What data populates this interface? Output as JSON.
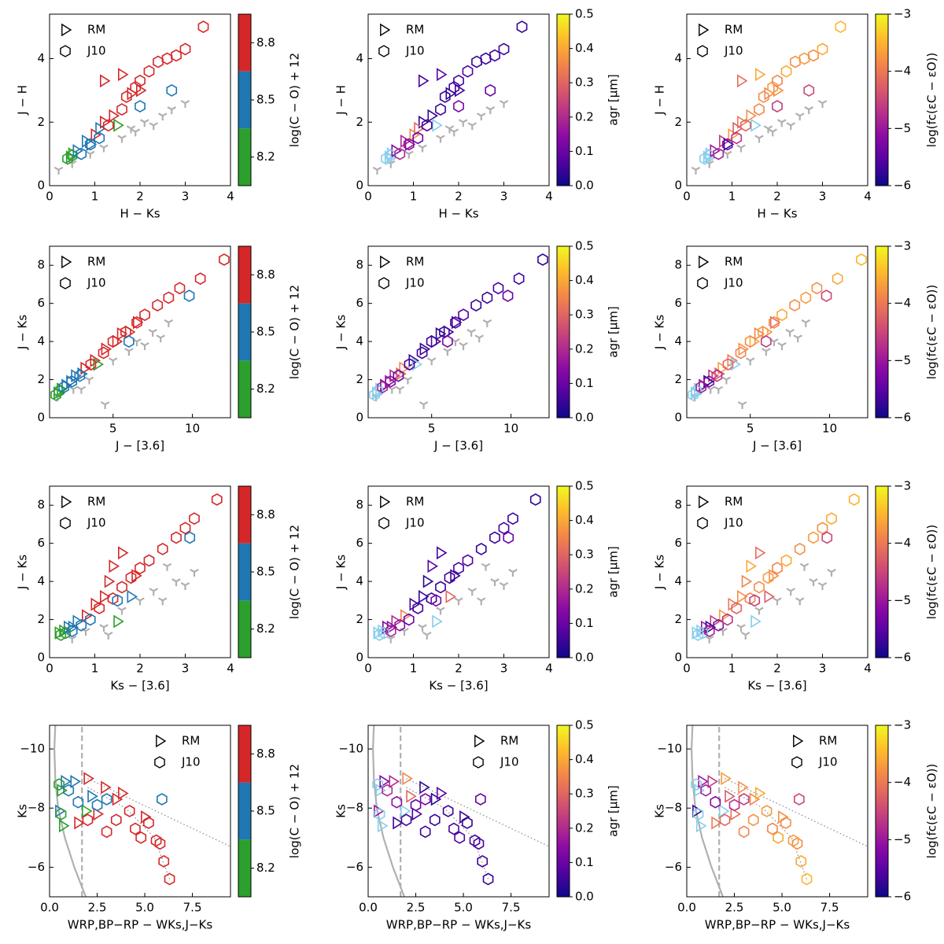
{
  "legend": [
    "RM",
    "J10"
  ],
  "missing_color": "#87ceeb",
  "gray_color": "#b0b0b0",
  "columns": [
    {
      "key": "co",
      "label": "log(C − O) + 12",
      "cmap": "discrete",
      "boundaries": [
        8.05,
        8.35,
        8.65,
        8.95
      ],
      "colors": [
        "#2ca02c",
        "#1f77b4",
        "#d62728"
      ],
      "ticks": [
        8.2,
        8.5,
        8.8
      ]
    },
    {
      "key": "agr",
      "label": "agr [μm]",
      "cmap": "plasma",
      "lim": [
        0,
        0.5
      ],
      "ticks": [
        {
          "value": 0,
          "label": "0.0"
        },
        0.1,
        0.2,
        0.3,
        0.4,
        0.5
      ]
    },
    {
      "key": "logf",
      "label": "log(fc(εC − εO))",
      "cmap": "plasma",
      "lim": [
        -6,
        -3
      ],
      "ticks": [
        {
          "value": -6,
          "label": "−6"
        },
        {
          "value": -5,
          "label": "−5"
        },
        {
          "value": -4,
          "label": "−4"
        },
        {
          "value": -3,
          "label": "−3"
        }
      ]
    }
  ],
  "stars": {
    "rm": {
      "co": [
        8.2,
        8.2,
        8.5,
        8.5,
        8.8,
        8.8,
        8.8,
        8.2,
        8.8,
        8.8,
        8.8,
        8.5,
        8.5,
        8.8
      ],
      "agr": [
        null,
        null,
        0.12,
        0.2,
        0.35,
        0.05,
        0.04,
        null,
        0.03,
        0.06,
        0.08,
        0.15,
        0.3,
        0.05
      ],
      "logf": [
        null,
        null,
        -5.0,
        -4.6,
        -3.7,
        -4.0,
        -3.8,
        null,
        -3.9,
        -4.1,
        -3.6,
        -5.8,
        -4.3,
        -3.8
      ]
    },
    "j10": {
      "co": [
        8.2,
        8.2,
        8.5,
        8.5,
        8.5,
        8.8,
        8.8,
        8.8,
        8.8,
        8.8,
        8.8,
        8.8,
        8.8,
        8.8,
        8.8,
        8.8,
        8.5,
        8.5
      ],
      "agr": [
        null,
        null,
        0.2,
        0.15,
        0.1,
        0.06,
        0.05,
        0.04,
        0.05,
        0.06,
        0.07,
        0.04,
        0.05,
        0.06,
        0.05,
        0.04,
        0.1,
        0.12
      ],
      "logf": [
        null,
        null,
        -4.9,
        -5.2,
        -4.7,
        -4.2,
        -3.9,
        -3.8,
        -3.7,
        -3.9,
        -3.6,
        -3.8,
        -3.7,
        -3.8,
        -3.6,
        -3.5,
        -4.5,
        -4.6
      ]
    }
  },
  "chart_data": [
    {
      "type": "scatter",
      "xlabel": "H − Ks",
      "ylabel": "J − H",
      "legend_loc": "upper left",
      "xlim": [
        0,
        4
      ],
      "ylim": [
        0,
        5.4
      ],
      "xticks": [
        0,
        1,
        2,
        3,
        4
      ],
      "yticks": [
        0,
        2,
        4
      ],
      "rm": {
        "x": [
          0.45,
          0.5,
          0.6,
          0.8,
          1.0,
          1.2,
          1.4,
          1.5,
          1.8,
          1.2,
          1.6,
          0.9,
          1.1,
          2.0
        ],
        "y": [
          0.9,
          1.0,
          1.1,
          1.4,
          1.6,
          2.0,
          2.2,
          1.9,
          2.9,
          3.3,
          3.5,
          1.3,
          1.8,
          3.0
        ]
      },
      "j10": {
        "x": [
          0.4,
          0.5,
          0.7,
          0.9,
          1.1,
          1.3,
          1.6,
          1.7,
          1.9,
          2.0,
          2.2,
          2.4,
          2.6,
          2.8,
          3.0,
          3.4,
          2.7,
          2.0
        ],
        "y": [
          0.85,
          0.95,
          1.0,
          1.3,
          1.5,
          1.9,
          2.4,
          2.8,
          3.1,
          3.3,
          3.6,
          3.9,
          4.0,
          4.1,
          4.3,
          5.0,
          3.0,
          2.5
        ]
      },
      "gray": {
        "x": [
          0.2,
          0.5,
          0.9,
          1.2,
          1.6,
          1.9,
          2.1,
          2.3,
          2.5,
          2.7,
          3.0,
          1.8
        ],
        "y": [
          0.5,
          0.7,
          1.0,
          1.2,
          1.5,
          1.7,
          2.0,
          1.9,
          2.2,
          2.4,
          2.6,
          1.8
        ]
      }
    },
    {
      "type": "scatter",
      "xlabel": "J − [3.6]",
      "ylabel": "J − Ks",
      "legend_loc": "upper left",
      "xlim": [
        1,
        12.4
      ],
      "ylim": [
        0,
        9
      ],
      "xticks": [
        5,
        10
      ],
      "yticks": [
        0,
        2,
        4,
        6,
        8
      ],
      "rm": {
        "x": [
          1.5,
          1.7,
          2.0,
          2.6,
          3.2,
          3.8,
          4.5,
          4.0,
          5.5,
          6.5,
          5.2,
          2.3,
          3.0,
          6.0
        ],
        "y": [
          1.3,
          1.5,
          1.7,
          2.2,
          2.6,
          3.0,
          3.6,
          2.8,
          4.4,
          5.0,
          4.0,
          1.9,
          2.3,
          4.5
        ]
      },
      "j10": {
        "x": [
          1.4,
          1.6,
          1.9,
          2.4,
          2.9,
          3.6,
          4.4,
          5.0,
          5.8,
          6.5,
          7.0,
          7.8,
          8.5,
          9.2,
          10.5,
          12.0,
          9.8,
          6.0
        ],
        "y": [
          1.2,
          1.4,
          1.6,
          1.9,
          2.2,
          2.8,
          3.4,
          4.0,
          4.5,
          5.0,
          5.4,
          5.9,
          6.3,
          6.8,
          7.3,
          8.3,
          6.4,
          4.0
        ]
      },
      "gray": {
        "x": [
          1.5,
          2.5,
          3.5,
          4.5,
          5.0,
          6.0,
          7.0,
          7.5,
          8.0,
          8.5,
          3.0,
          6.5
        ],
        "y": [
          1.1,
          1.5,
          2.0,
          0.7,
          3.0,
          3.5,
          3.8,
          4.5,
          4.2,
          5.0,
          1.5,
          4.0
        ]
      }
    },
    {
      "type": "scatter",
      "xlabel": "Ks − [3.6]",
      "ylabel": "J − Ks",
      "legend_loc": "upper left",
      "xlim": [
        0,
        4
      ],
      "ylim": [
        0,
        9
      ],
      "xticks": [
        0,
        1,
        2,
        3,
        4
      ],
      "yticks": [
        0,
        2,
        4,
        6,
        8
      ],
      "rm": {
        "x": [
          0.2,
          0.3,
          0.4,
          0.6,
          0.8,
          1.0,
          1.2,
          1.5,
          1.3,
          1.6,
          1.4,
          0.5,
          1.8,
          1.9
        ],
        "y": [
          1.3,
          1.4,
          1.6,
          1.9,
          2.2,
          2.8,
          3.2,
          1.9,
          4.0,
          5.5,
          4.8,
          1.6,
          3.2,
          4.3
        ]
      },
      "j10": {
        "x": [
          0.25,
          0.35,
          0.5,
          0.7,
          0.9,
          1.1,
          1.4,
          1.6,
          1.8,
          2.0,
          2.2,
          2.5,
          2.8,
          3.0,
          3.2,
          3.7,
          3.1,
          1.5
        ],
        "y": [
          1.2,
          1.3,
          1.4,
          1.7,
          2.0,
          2.6,
          3.1,
          3.7,
          4.2,
          4.7,
          5.1,
          5.7,
          6.3,
          6.8,
          7.3,
          8.3,
          6.3,
          3.0
        ]
      },
      "gray": {
        "x": [
          0.5,
          0.8,
          1.2,
          1.3,
          1.6,
          2.0,
          2.3,
          2.5,
          2.8,
          3.0,
          3.2,
          2.6
        ],
        "y": [
          1.0,
          1.4,
          1.6,
          1.2,
          2.5,
          3.0,
          3.5,
          3.0,
          4.0,
          3.8,
          4.5,
          4.8
        ]
      }
    },
    {
      "type": "scatter",
      "xlabel": "WRP,BP−RP − WKs,J−Ks",
      "ylabel": "Ks",
      "legend_loc": "upper right",
      "xlim": [
        0,
        9.5
      ],
      "ylim": [
        -5,
        -10.8
      ],
      "xticks": [
        {
          "value": 0,
          "label": "0.0"
        },
        {
          "value": 2.5,
          "label": "2.5"
        },
        {
          "value": 5,
          "label": "5.0"
        },
        {
          "value": 7.5,
          "label": "7.5"
        }
      ],
      "yticks": [
        {
          "value": -10,
          "label": "−10"
        },
        {
          "value": -8,
          "label": "−8"
        },
        {
          "value": -6,
          "label": "−6"
        }
      ],
      "rm": {
        "x": [
          0.6,
          0.7,
          0.8,
          1.3,
          2.0,
          1.5,
          2.9,
          1.9,
          3.5,
          2.5,
          3.8,
          0.5,
          2.2,
          5.0
        ],
        "y": [
          -8.6,
          -7.4,
          -8.9,
          -8.9,
          -9.0,
          -7.5,
          -8.7,
          -7.9,
          -8.3,
          -7.8,
          -8.5,
          -7.9,
          -8.4,
          -7.7
        ]
      },
      "j10": {
        "x": [
          0.6,
          0.5,
          1.0,
          1.5,
          2.5,
          2.0,
          3.0,
          3.5,
          4.2,
          4.5,
          4.8,
          5.2,
          5.6,
          5.8,
          6.0,
          6.3,
          5.9,
          3.0
        ],
        "y": [
          -7.8,
          -8.8,
          -8.6,
          -8.2,
          -8.1,
          -7.6,
          -7.2,
          -7.6,
          -7.9,
          -7.3,
          -7.0,
          -7.5,
          -6.9,
          -6.8,
          -6.2,
          -5.6,
          -8.3,
          -8.3
        ]
      },
      "lines": [
        {
          "style": "solid",
          "x": [
            1.9,
            1.3,
            0.8,
            0.45,
            0.3,
            0.25,
            0.3
          ],
          "y": [
            -5,
            -6,
            -7,
            -8,
            -9,
            -10,
            -10.8
          ]
        },
        {
          "style": "dashed",
          "x": [
            1.7,
            1.7
          ],
          "y": [
            -5,
            -10.8
          ]
        },
        {
          "style": "dotted",
          "x": [
            2.0,
            9.5
          ],
          "y": [
            -9.0,
            -6.7
          ]
        },
        {
          "style": "dotted",
          "x": [
            2.0,
            4.0,
            5.5,
            6.3
          ],
          "y": [
            -8.7,
            -8.0,
            -7.0,
            -5.6
          ]
        }
      ]
    }
  ]
}
